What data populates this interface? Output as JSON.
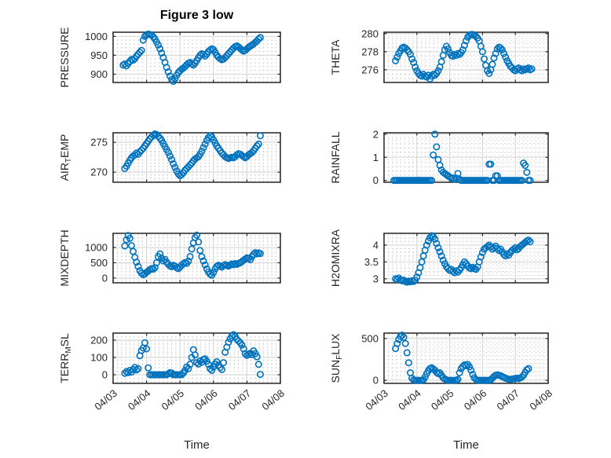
{
  "title": "Figure 3 low",
  "axes": {
    "xlabel": "Time",
    "x_tick_labels": [
      "04/03",
      "04/04",
      "04/05",
      "04/06",
      "04/07",
      "04/08"
    ]
  },
  "colors": {
    "marker": "#0072BD",
    "axis": "#262626",
    "major_grid": "#d9d9d9",
    "minor_grid": "#bdbdbd",
    "background": "#ffffff"
  },
  "chart_data": [
    {
      "type": "scatter",
      "name": "PRESSURE",
      "row": 0,
      "col": 0,
      "ylabel": "PRESSURE",
      "ylabel_parts": [
        {
          "text": "PRESSURE",
          "sub": false
        }
      ],
      "yticks": [
        900,
        950,
        1000
      ],
      "ytick_labels": [
        "900",
        "950",
        "1000"
      ],
      "ylim": [
        878,
        1011
      ],
      "y_minor_step": 10,
      "xlim_days": [
        0,
        5
      ],
      "x_origin_label": "04/03",
      "x_start_day": 0.3,
      "x_step_day": 0.05,
      "values": [
        924,
        927,
        922,
        928,
        934,
        939,
        937,
        941,
        948,
        953,
        958,
        963,
        990,
        1000,
        1004,
        1006,
        1005,
        1003,
        999,
        993,
        985,
        977,
        967,
        956,
        944,
        931,
        918,
        906,
        895,
        886,
        881,
        888,
        897,
        904,
        909,
        913,
        916,
        920,
        925,
        929,
        931,
        927,
        924,
        929,
        936,
        943,
        950,
        954,
        952,
        948,
        953,
        960,
        964,
        967,
        965,
        958,
        950,
        945,
        941,
        938,
        940,
        944,
        949,
        954,
        959,
        964,
        969,
        973,
        975,
        972,
        968,
        964,
        961,
        963,
        967,
        971,
        974,
        977,
        980,
        984,
        988,
        993,
        997
      ]
    },
    {
      "type": "scatter",
      "name": "THETA",
      "row": 0,
      "col": 1,
      "ylabel": "THETA",
      "ylabel_parts": [
        {
          "text": "THETA",
          "sub": false
        }
      ],
      "yticks": [
        276,
        278,
        280
      ],
      "ytick_labels": [
        "276",
        "278",
        "280"
      ],
      "ylim": [
        274.6,
        280.15
      ],
      "y_minor_step": 0.5,
      "xlim_days": [
        0,
        5
      ],
      "x_origin_label": "04/03",
      "x_start_day": 0.35,
      "x_step_day": 0.05,
      "values": [
        277.0,
        277.4,
        277.8,
        278.1,
        278.4,
        278.5,
        278.4,
        278.2,
        278.0,
        277.7,
        277.2,
        276.8,
        276.3,
        275.9,
        275.6,
        275.4,
        275.3,
        275.5,
        275.3,
        275.2,
        275.4,
        275.0,
        275.3,
        275.5,
        275.4,
        275.6,
        275.9,
        276.3,
        276.9,
        277.6,
        278.2,
        278.6,
        278.3,
        277.9,
        277.6,
        277.5,
        277.7,
        277.6,
        277.8,
        277.7,
        277.9,
        278.2,
        278.7,
        279.2,
        279.6,
        279.8,
        279.9,
        279.9,
        279.8,
        279.7,
        279.5,
        279.2,
        278.6,
        278.0,
        277.2,
        276.5,
        275.9,
        275.6,
        276.0,
        276.6,
        277.3,
        277.8,
        278.3,
        278.5,
        278.4,
        278.2,
        277.8,
        277.4,
        277.0,
        276.7,
        276.4,
        276.2,
        276.0,
        275.9,
        276.1,
        276.2,
        276.0,
        275.9,
        276.1,
        276.0,
        276.1,
        276.2,
        276.0,
        276.1
      ]
    },
    {
      "type": "scatter",
      "name": "AIR_TEMP",
      "row": 1,
      "col": 0,
      "ylabel": "AIR_TEMP",
      "ylabel_parts": [
        {
          "text": "AIR",
          "sub": false
        },
        {
          "text": "T",
          "sub": true
        },
        {
          "text": "EMP",
          "sub": false
        }
      ],
      "yticks": [
        270,
        275
      ],
      "ytick_labels": [
        "270",
        "275"
      ],
      "ylim": [
        268.3,
        276.6
      ],
      "y_minor_step": 0.5,
      "xlim_days": [
        0,
        5
      ],
      "x_origin_label": "04/03",
      "x_start_day": 0.35,
      "x_step_day": 0.05,
      "values": [
        270.6,
        271.0,
        271.5,
        272.0,
        272.4,
        272.7,
        272.9,
        273.2,
        273.0,
        273.4,
        273.7,
        274.0,
        274.4,
        274.8,
        275.2,
        275.6,
        275.9,
        276.2,
        276.4,
        276.3,
        276.0,
        275.7,
        275.3,
        274.8,
        274.3,
        273.8,
        273.3,
        272.7,
        272.1,
        271.4,
        270.8,
        270.2,
        269.7,
        269.4,
        269.6,
        269.9,
        270.3,
        270.6,
        270.9,
        271.2,
        271.5,
        271.9,
        272.2,
        272.4,
        272.6,
        273.0,
        273.5,
        274.1,
        274.7,
        275.3,
        275.8,
        276.1,
        275.9,
        275.4,
        274.9,
        274.4,
        274.0,
        273.6,
        273.2,
        272.9,
        272.6,
        272.4,
        272.3,
        272.4,
        272.5,
        272.4,
        272.6,
        272.9,
        273.1,
        273.0,
        272.8,
        272.6,
        272.4,
        272.6,
        272.9,
        273.1,
        273.3,
        273.6,
        274.0,
        274.4,
        274.7,
        276.1
      ]
    },
    {
      "type": "scatter",
      "name": "RAINFALL",
      "row": 1,
      "col": 1,
      "ylabel": "RAINFALL",
      "ylabel_parts": [
        {
          "text": "RAINFALL",
          "sub": false
        }
      ],
      "yticks": [
        0,
        1,
        2
      ],
      "ytick_labels": [
        "0",
        "1",
        "2"
      ],
      "ylim": [
        -0.08,
        2.06
      ],
      "y_minor_step": 0.2,
      "xlim_days": [
        0,
        5
      ],
      "x_origin_label": "04/03",
      "x_start_day": 0.3,
      "x_step_day": 0.05,
      "values": [
        0,
        0,
        0,
        0,
        0,
        0,
        0,
        0,
        0,
        0,
        0,
        0,
        0,
        0,
        0,
        0,
        0,
        0,
        0,
        0,
        0,
        0,
        0,
        0,
        1.1,
        2.0,
        1.45,
        0.9,
        0.65,
        0.45,
        0.35,
        0.3,
        0.25,
        0.2,
        0.15,
        0.1,
        0.1,
        0.05,
        0.1,
        0.3,
        0.05,
        0,
        0,
        0,
        0,
        0,
        0,
        0,
        0,
        0,
        0,
        0,
        0,
        0,
        0,
        0,
        0,
        0,
        0.7,
        0.7,
        0,
        0,
        0.2,
        0.2,
        0,
        0,
        0,
        0,
        0,
        0,
        0,
        0,
        0,
        0,
        0,
        0,
        0,
        0,
        0,
        0.75,
        0.65,
        0.35,
        0,
        0
      ]
    },
    {
      "type": "scatter",
      "name": "MIXDEPTH",
      "row": 2,
      "col": 0,
      "ylabel": "MIXDEPTH",
      "ylabel_parts": [
        {
          "text": "MIXDEPTH",
          "sub": false
        }
      ],
      "yticks": [
        0,
        500,
        1000
      ],
      "ytick_labels": [
        "0",
        "500",
        "1000"
      ],
      "ylim": [
        -154,
        1461
      ],
      "y_minor_step": 100,
      "xlim_days": [
        0,
        5
      ],
      "x_origin_label": "04/03",
      "x_start_day": 0.35,
      "x_step_day": 0.05,
      "values": [
        1050,
        1250,
        1390,
        1300,
        1060,
        870,
        680,
        520,
        380,
        240,
        160,
        110,
        140,
        190,
        230,
        280,
        310,
        290,
        340,
        500,
        700,
        790,
        650,
        560,
        610,
        520,
        450,
        400,
        370,
        420,
        390,
        340,
        310,
        360,
        420,
        470,
        510,
        480,
        550,
        700,
        950,
        1150,
        1320,
        1400,
        1180,
        900,
        700,
        560,
        430,
        300,
        200,
        130,
        90,
        180,
        300,
        380,
        420,
        390,
        360,
        410,
        440,
        420,
        390,
        430,
        460,
        440,
        470,
        450,
        480,
        500,
        540,
        580,
        620,
        660,
        640,
        600,
        700,
        780,
        830,
        790,
        820,
        800
      ]
    },
    {
      "type": "scatter",
      "name": "H2OMIXRA",
      "row": 2,
      "col": 1,
      "ylabel": "H2OMIXRA",
      "ylabel_parts": [
        {
          "text": "H2OMIXRA",
          "sub": false
        }
      ],
      "yticks": [
        3,
        3.5,
        4
      ],
      "ytick_labels": [
        "3",
        "3.5",
        "4"
      ],
      "ylim": [
        2.88,
        4.35
      ],
      "y_minor_step": 0.1,
      "xlim_days": [
        0,
        5
      ],
      "x_origin_label": "04/03",
      "x_start_day": 0.35,
      "x_step_day": 0.05,
      "values": [
        3.0,
        2.98,
        3.02,
        2.97,
        2.94,
        2.96,
        2.92,
        2.9,
        2.93,
        2.91,
        2.94,
        2.92,
        2.96,
        3.05,
        3.18,
        3.33,
        3.5,
        3.68,
        3.85,
        4.0,
        4.12,
        4.22,
        4.28,
        4.25,
        4.18,
        4.05,
        3.92,
        3.8,
        3.68,
        3.55,
        3.45,
        3.36,
        3.3,
        3.25,
        3.28,
        3.22,
        3.18,
        3.24,
        3.2,
        3.26,
        3.33,
        3.42,
        3.5,
        3.45,
        3.38,
        3.32,
        3.3,
        3.34,
        3.3,
        3.28,
        3.35,
        3.5,
        3.65,
        3.78,
        3.88,
        3.92,
        3.96,
        4.0,
        3.95,
        3.88,
        3.92,
        3.97,
        3.9,
        3.84,
        3.88,
        3.8,
        3.72,
        3.68,
        3.74,
        3.7,
        3.78,
        3.84,
        3.88,
        3.92,
        3.86,
        3.9,
        3.96,
        4.0,
        4.04,
        4.08,
        4.12,
        4.15,
        4.1
      ]
    },
    {
      "type": "scatter",
      "name": "TERR_MSL",
      "row": 3,
      "col": 0,
      "ylabel": "TERR_MSL",
      "ylabel_parts": [
        {
          "text": "TERR",
          "sub": false
        },
        {
          "text": "M",
          "sub": true
        },
        {
          "text": "SL",
          "sub": false
        }
      ],
      "yticks": [
        0,
        100,
        200
      ],
      "ytick_labels": [
        "0",
        "100",
        "200"
      ],
      "ylim": [
        -50,
        241
      ],
      "y_minor_step": 20,
      "xlim_days": [
        0,
        5
      ],
      "x_origin_label": "04/03",
      "x_start_day": 0.35,
      "x_step_day": 0.05,
      "values": [
        8,
        18,
        12,
        25,
        15,
        30,
        42,
        28,
        35,
        110,
        140,
        155,
        185,
        150,
        40,
        0,
        0,
        0,
        0,
        0,
        0,
        0,
        0,
        0,
        0,
        0,
        5,
        12,
        10,
        0,
        0,
        0,
        0,
        0,
        0,
        10,
        25,
        45,
        35,
        60,
        100,
        145,
        115,
        70,
        62,
        80,
        72,
        88,
        92,
        78,
        60,
        35,
        25,
        45,
        62,
        75,
        55,
        42,
        30,
        70,
        130,
        160,
        188,
        208,
        225,
        232,
        222,
        205,
        195,
        185,
        172,
        150,
        122,
        112,
        118,
        124,
        116,
        138,
        122,
        104,
        60,
        2
      ]
    },
    {
      "type": "scatter",
      "name": "SUN_FLUX",
      "row": 3,
      "col": 1,
      "ylabel": "SUN_FLUX",
      "ylabel_parts": [
        {
          "text": "SUN",
          "sub": false
        },
        {
          "text": "F",
          "sub": true
        },
        {
          "text": "LUX",
          "sub": false
        }
      ],
      "yticks": [
        0,
        500
      ],
      "ytick_labels": [
        "0",
        "500"
      ],
      "ylim": [
        -37,
        565
      ],
      "y_minor_step": 50,
      "xlim_days": [
        0,
        5
      ],
      "x_origin_label": "04/03",
      "x_start_day": 0.35,
      "x_step_day": 0.05,
      "values": [
        380,
        440,
        490,
        525,
        540,
        515,
        440,
        330,
        210,
        90,
        25,
        5,
        0,
        0,
        0,
        0,
        0,
        5,
        40,
        80,
        115,
        140,
        150,
        135,
        120,
        95,
        80,
        90,
        60,
        30,
        15,
        5,
        0,
        0,
        0,
        0,
        0,
        0,
        10,
        90,
        140,
        165,
        185,
        175,
        190,
        160,
        120,
        70,
        30,
        10,
        0,
        0,
        0,
        0,
        0,
        0,
        0,
        0,
        5,
        25,
        45,
        60,
        65,
        60,
        55,
        45,
        35,
        25,
        18,
        12,
        10,
        14,
        18,
        22,
        25,
        20,
        28,
        40,
        60,
        95,
        125,
        140
      ]
    }
  ]
}
